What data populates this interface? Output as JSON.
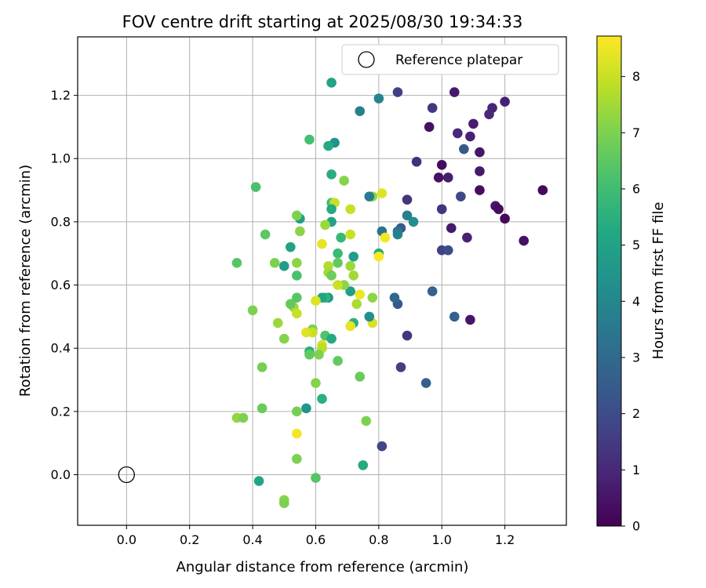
{
  "chart_data": {
    "type": "scatter",
    "title": "FOV centre drift starting at 2025/08/30 19:34:33",
    "xlabel": "Angular distance from reference (arcmin)",
    "ylabel": "Rotation from reference (arcmin)",
    "xlim": [
      -0.155,
      1.395
    ],
    "ylim": [
      -0.16,
      1.385
    ],
    "xticks": [
      0.0,
      0.2,
      0.4,
      0.6,
      0.8,
      1.0,
      1.2
    ],
    "xtick_labels": [
      "0.0",
      "0.2",
      "0.4",
      "0.6",
      "0.8",
      "1.0",
      "1.2"
    ],
    "yticks": [
      0.0,
      0.2,
      0.4,
      0.6,
      0.8,
      1.0,
      1.2
    ],
    "ytick_labels": [
      "0.0",
      "0.2",
      "0.4",
      "0.6",
      "0.8",
      "1.0",
      "1.2"
    ],
    "grid": true,
    "legend": {
      "placement": "top-right",
      "entries": [
        "Reference platepar"
      ]
    },
    "reference_point": {
      "name": "Reference platepar",
      "x": 0.0,
      "y": 0.0
    },
    "colorbar": {
      "label": "Hours from first FF file",
      "colormap": "viridis",
      "range": [
        0,
        8.72
      ],
      "ticks": [
        0,
        1,
        2,
        3,
        4,
        5,
        6,
        7,
        8
      ],
      "tick_labels": [
        "0",
        "1",
        "2",
        "3",
        "4",
        "5",
        "6",
        "7",
        "8"
      ]
    },
    "points": [
      {
        "x": 1.32,
        "y": 0.9,
        "c": 0.2
      },
      {
        "x": 1.26,
        "y": 0.74,
        "c": 0.4
      },
      {
        "x": 1.2,
        "y": 1.18,
        "c": 0.8
      },
      {
        "x": 1.16,
        "y": 1.16,
        "c": 0.9
      },
      {
        "x": 1.15,
        "y": 1.14,
        "c": 1.0
      },
      {
        "x": 1.17,
        "y": 0.85,
        "c": 0.5
      },
      {
        "x": 1.18,
        "y": 0.84,
        "c": 0.3
      },
      {
        "x": 1.2,
        "y": 0.81,
        "c": 0.2
      },
      {
        "x": 1.12,
        "y": 1.02,
        "c": 0.5
      },
      {
        "x": 1.12,
        "y": 0.96,
        "c": 0.6
      },
      {
        "x": 1.12,
        "y": 0.9,
        "c": 0.3
      },
      {
        "x": 1.1,
        "y": 1.11,
        "c": 0.7
      },
      {
        "x": 1.09,
        "y": 1.07,
        "c": 0.8
      },
      {
        "x": 1.04,
        "y": 1.21,
        "c": 0.6
      },
      {
        "x": 1.05,
        "y": 1.08,
        "c": 1.0
      },
      {
        "x": 1.07,
        "y": 1.03,
        "c": 2.4
      },
      {
        "x": 1.06,
        "y": 0.88,
        "c": 1.9
      },
      {
        "x": 1.08,
        "y": 0.75,
        "c": 0.8
      },
      {
        "x": 1.09,
        "y": 0.49,
        "c": 0.5
      },
      {
        "x": 1.04,
        "y": 0.5,
        "c": 2.7
      },
      {
        "x": 1.02,
        "y": 0.94,
        "c": 0.7
      },
      {
        "x": 1.0,
        "y": 0.98,
        "c": 0.3
      },
      {
        "x": 0.99,
        "y": 0.94,
        "c": 0.4
      },
      {
        "x": 1.0,
        "y": 0.84,
        "c": 1.3
      },
      {
        "x": 1.03,
        "y": 0.78,
        "c": 0.6
      },
      {
        "x": 1.0,
        "y": 0.71,
        "c": 1.7
      },
      {
        "x": 1.02,
        "y": 0.71,
        "c": 2.0
      },
      {
        "x": 0.96,
        "y": 1.1,
        "c": 0.4
      },
      {
        "x": 0.97,
        "y": 1.16,
        "c": 1.4
      },
      {
        "x": 0.97,
        "y": 0.58,
        "c": 2.7
      },
      {
        "x": 0.95,
        "y": 0.29,
        "c": 2.6
      },
      {
        "x": 0.92,
        "y": 0.99,
        "c": 1.2
      },
      {
        "x": 0.89,
        "y": 0.87,
        "c": 1.3
      },
      {
        "x": 0.89,
        "y": 0.44,
        "c": 1.3
      },
      {
        "x": 0.86,
        "y": 1.21,
        "c": 1.6
      },
      {
        "x": 0.87,
        "y": 0.78,
        "c": 2.5
      },
      {
        "x": 0.86,
        "y": 0.77,
        "c": 3.2
      },
      {
        "x": 0.87,
        "y": 0.34,
        "c": 1.6
      },
      {
        "x": 0.86,
        "y": 0.54,
        "c": 2.4
      },
      {
        "x": 0.85,
        "y": 0.56,
        "c": 2.9
      },
      {
        "x": 0.91,
        "y": 0.8,
        "c": 4.3
      },
      {
        "x": 0.89,
        "y": 0.82,
        "c": 3.7
      },
      {
        "x": 0.86,
        "y": 0.76,
        "c": 3.8
      },
      {
        "x": 0.81,
        "y": 0.09,
        "c": 1.8
      },
      {
        "x": 0.8,
        "y": 1.19,
        "c": 3.9
      },
      {
        "x": 0.81,
        "y": 0.77,
        "c": 3.3
      },
      {
        "x": 0.81,
        "y": 0.89,
        "c": 8.3
      },
      {
        "x": 0.82,
        "y": 0.75,
        "c": 8.6
      },
      {
        "x": 0.8,
        "y": 0.7,
        "c": 5.3
      },
      {
        "x": 0.8,
        "y": 0.69,
        "c": 8.7
      },
      {
        "x": 0.78,
        "y": 0.88,
        "c": 7.2
      },
      {
        "x": 0.77,
        "y": 0.88,
        "c": 3.6
      },
      {
        "x": 0.78,
        "y": 0.56,
        "c": 7.2
      },
      {
        "x": 0.78,
        "y": 0.48,
        "c": 8.2
      },
      {
        "x": 0.77,
        "y": 0.5,
        "c": 4.3
      },
      {
        "x": 0.76,
        "y": 0.17,
        "c": 7.0
      },
      {
        "x": 0.74,
        "y": 1.15,
        "c": 3.8
      },
      {
        "x": 0.74,
        "y": 0.57,
        "c": 8.5
      },
      {
        "x": 0.73,
        "y": 0.54,
        "c": 7.6
      },
      {
        "x": 0.74,
        "y": 0.31,
        "c": 6.7
      },
      {
        "x": 0.75,
        "y": 0.03,
        "c": 5.3
      },
      {
        "x": 0.72,
        "y": 0.69,
        "c": 4.8
      },
      {
        "x": 0.72,
        "y": 0.63,
        "c": 7.5
      },
      {
        "x": 0.71,
        "y": 0.84,
        "c": 8.0
      },
      {
        "x": 0.71,
        "y": 0.76,
        "c": 8.0
      },
      {
        "x": 0.71,
        "y": 0.66,
        "c": 7.4
      },
      {
        "x": 0.71,
        "y": 0.58,
        "c": 4.9
      },
      {
        "x": 0.72,
        "y": 0.48,
        "c": 5.5
      },
      {
        "x": 0.71,
        "y": 0.47,
        "c": 8.4
      },
      {
        "x": 0.69,
        "y": 0.93,
        "c": 7.1
      },
      {
        "x": 0.69,
        "y": 0.6,
        "c": 7.2
      },
      {
        "x": 0.68,
        "y": 0.75,
        "c": 5.8
      },
      {
        "x": 0.67,
        "y": 0.7,
        "c": 5.9
      },
      {
        "x": 0.67,
        "y": 0.67,
        "c": 6.6
      },
      {
        "x": 0.67,
        "y": 0.6,
        "c": 8.0
      },
      {
        "x": 0.67,
        "y": 0.36,
        "c": 6.6
      },
      {
        "x": 0.66,
        "y": 1.05,
        "c": 4.4
      },
      {
        "x": 0.65,
        "y": 1.24,
        "c": 5.0
      },
      {
        "x": 0.64,
        "y": 1.04,
        "c": 5.3
      },
      {
        "x": 0.65,
        "y": 0.95,
        "c": 5.4
      },
      {
        "x": 0.65,
        "y": 0.86,
        "c": 6.1
      },
      {
        "x": 0.66,
        "y": 0.86,
        "c": 8.0
      },
      {
        "x": 0.65,
        "y": 0.84,
        "c": 5.3
      },
      {
        "x": 0.65,
        "y": 0.8,
        "c": 5.0
      },
      {
        "x": 0.63,
        "y": 0.79,
        "c": 7.4
      },
      {
        "x": 0.62,
        "y": 0.73,
        "c": 8.4
      },
      {
        "x": 0.64,
        "y": 0.66,
        "c": 7.7
      },
      {
        "x": 0.64,
        "y": 0.64,
        "c": 7.5
      },
      {
        "x": 0.65,
        "y": 0.63,
        "c": 6.8
      },
      {
        "x": 0.64,
        "y": 0.56,
        "c": 4.6
      },
      {
        "x": 0.63,
        "y": 0.56,
        "c": 5.7
      },
      {
        "x": 0.62,
        "y": 0.56,
        "c": 5.1
      },
      {
        "x": 0.63,
        "y": 0.44,
        "c": 6.3
      },
      {
        "x": 0.65,
        "y": 0.43,
        "c": 5.3
      },
      {
        "x": 0.62,
        "y": 0.41,
        "c": 8.1
      },
      {
        "x": 0.62,
        "y": 0.4,
        "c": 7.8
      },
      {
        "x": 0.61,
        "y": 0.38,
        "c": 7.0
      },
      {
        "x": 0.62,
        "y": 0.24,
        "c": 5.5
      },
      {
        "x": 0.6,
        "y": 0.55,
        "c": 8.3
      },
      {
        "x": 0.59,
        "y": 0.46,
        "c": 7.0
      },
      {
        "x": 0.59,
        "y": 0.45,
        "c": 8.0
      },
      {
        "x": 0.58,
        "y": 0.39,
        "c": 5.5
      },
      {
        "x": 0.58,
        "y": 0.38,
        "c": 6.6
      },
      {
        "x": 0.6,
        "y": 0.29,
        "c": 7.1
      },
      {
        "x": 0.6,
        "y": -0.01,
        "c": 6.4
      },
      {
        "x": 0.58,
        "y": 1.06,
        "c": 6.1
      },
      {
        "x": 0.57,
        "y": 0.45,
        "c": 8.3
      },
      {
        "x": 0.57,
        "y": 0.21,
        "c": 4.5
      },
      {
        "x": 0.55,
        "y": 0.81,
        "c": 4.9
      },
      {
        "x": 0.54,
        "y": 0.82,
        "c": 7.0
      },
      {
        "x": 0.55,
        "y": 0.77,
        "c": 7.2
      },
      {
        "x": 0.52,
        "y": 0.72,
        "c": 5.0
      },
      {
        "x": 0.54,
        "y": 0.67,
        "c": 7.2
      },
      {
        "x": 0.54,
        "y": 0.63,
        "c": 6.2
      },
      {
        "x": 0.54,
        "y": 0.56,
        "c": 6.4
      },
      {
        "x": 0.53,
        "y": 0.53,
        "c": 7.4
      },
      {
        "x": 0.52,
        "y": 0.54,
        "c": 6.6
      },
      {
        "x": 0.54,
        "y": 0.51,
        "c": 8.0
      },
      {
        "x": 0.54,
        "y": 0.2,
        "c": 6.9
      },
      {
        "x": 0.54,
        "y": 0.13,
        "c": 8.6
      },
      {
        "x": 0.54,
        "y": 0.05,
        "c": 7.0
      },
      {
        "x": 0.5,
        "y": 0.66,
        "c": 4.8
      },
      {
        "x": 0.47,
        "y": 0.67,
        "c": 7.0
      },
      {
        "x": 0.48,
        "y": 0.48,
        "c": 7.4
      },
      {
        "x": 0.5,
        "y": 0.43,
        "c": 7.1
      },
      {
        "x": 0.5,
        "y": -0.08,
        "c": 7.2
      },
      {
        "x": 0.5,
        "y": -0.09,
        "c": 7.0
      },
      {
        "x": 0.44,
        "y": 0.76,
        "c": 6.5
      },
      {
        "x": 0.43,
        "y": 0.34,
        "c": 6.9
      },
      {
        "x": 0.43,
        "y": 0.21,
        "c": 6.7
      },
      {
        "x": 0.41,
        "y": 0.91,
        "c": 6.2
      },
      {
        "x": 0.4,
        "y": 0.52,
        "c": 7.0
      },
      {
        "x": 0.42,
        "y": -0.02,
        "c": 5.1
      },
      {
        "x": 0.35,
        "y": 0.67,
        "c": 6.4
      },
      {
        "x": 0.35,
        "y": 0.18,
        "c": 7.3
      },
      {
        "x": 0.37,
        "y": 0.18,
        "c": 7.0
      }
    ]
  }
}
